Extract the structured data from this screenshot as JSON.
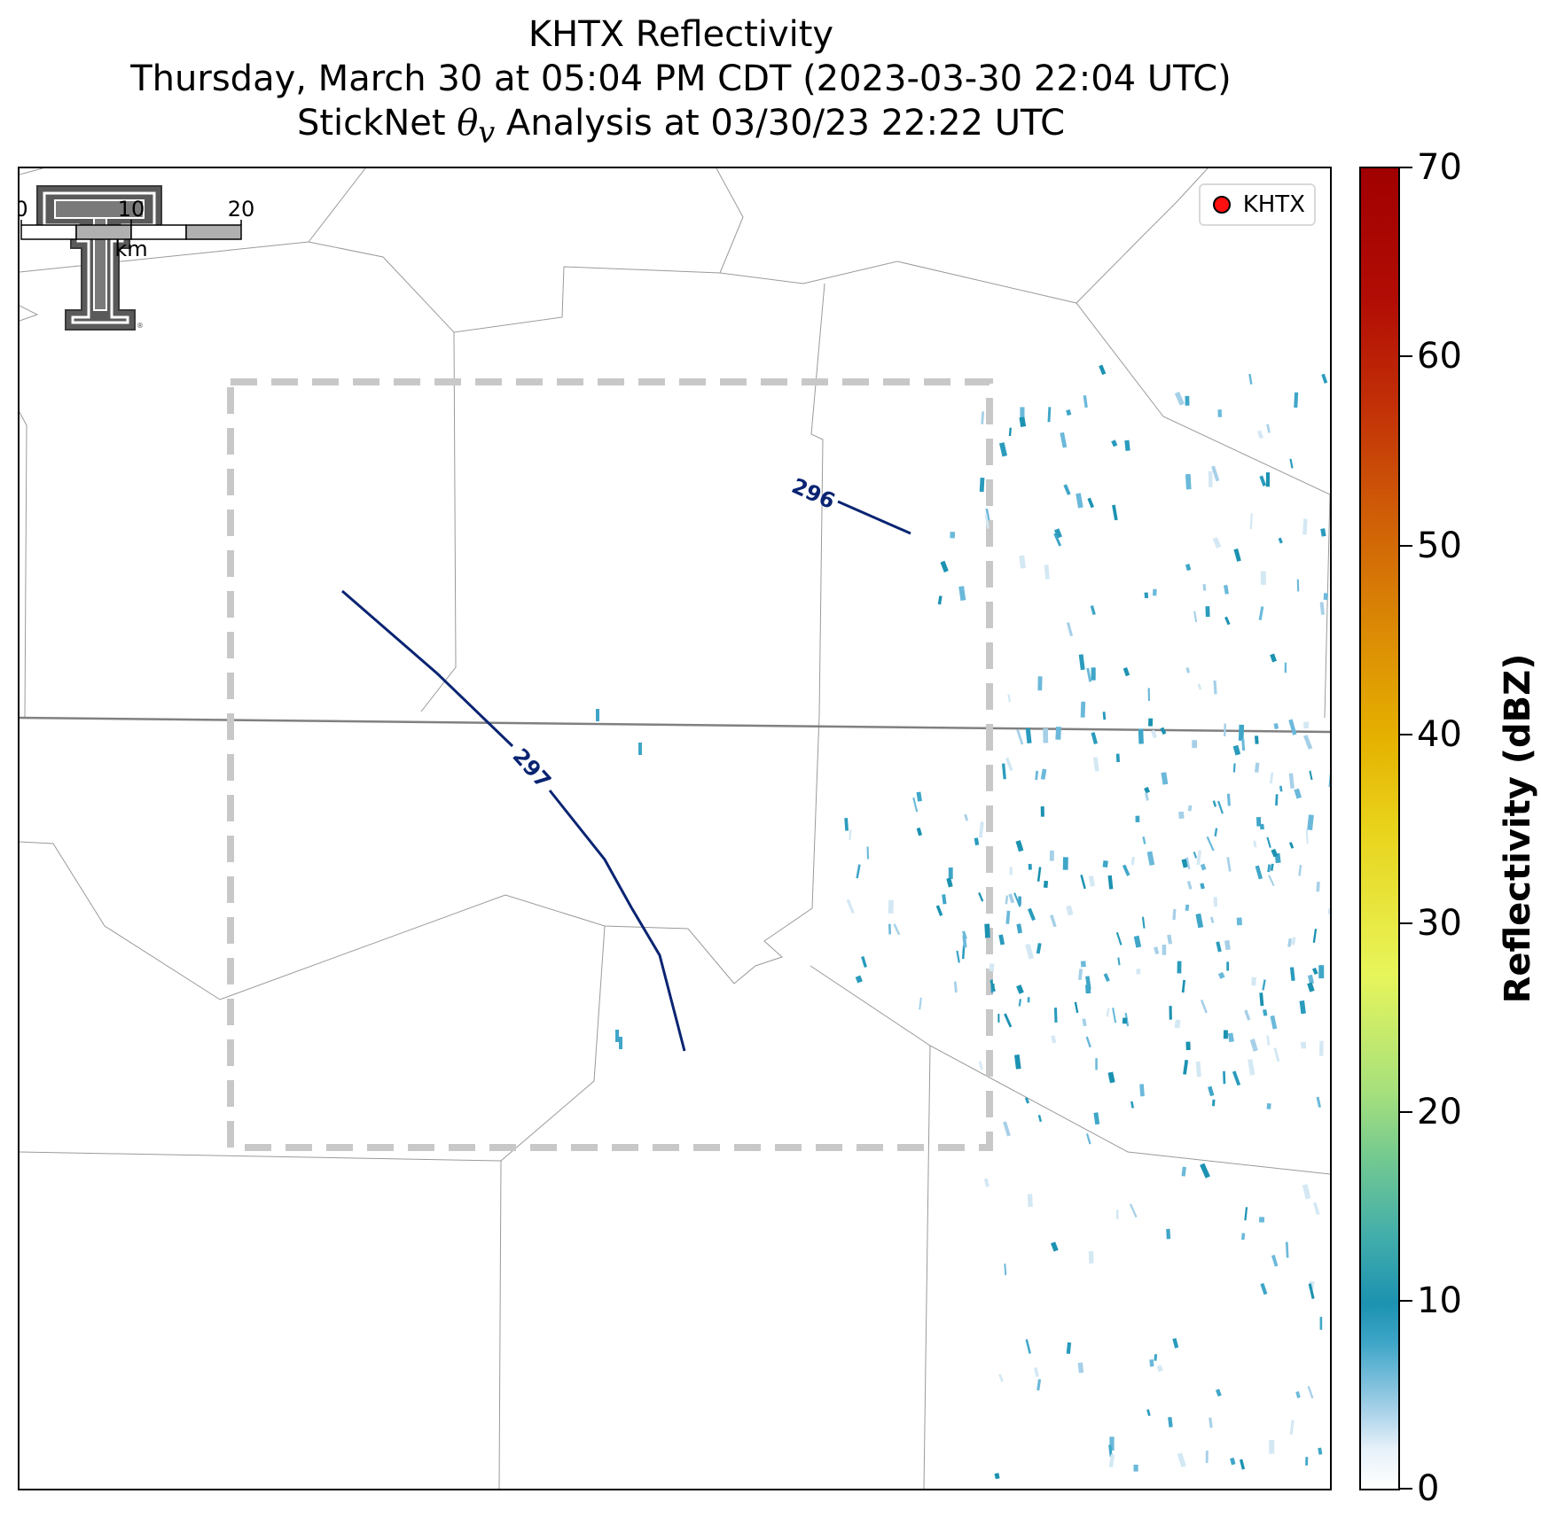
{
  "title": {
    "line1": "KHTX Reflectivity",
    "line2": "Thursday, March 30 at 05:04 PM CDT (2023-03-30 22:04 UTC)",
    "line3_prefix": "StickNet ",
    "line3_symbol": "θ",
    "line3_sub": "v",
    "line3_suffix": " Analysis at 03/30/23 22:22 UTC"
  },
  "legend": {
    "label": "KHTX",
    "marker_color": "#ff1010"
  },
  "contours": [
    {
      "label": "296",
      "color": "#0a2472"
    },
    {
      "label": "297",
      "color": "#0a2472"
    }
  ],
  "scale_bar": {
    "ticks": [
      "0",
      "10",
      "20"
    ],
    "unit": "km"
  },
  "colorbar": {
    "label": "Reflectivity (dBZ)",
    "ticks": [
      "70",
      "60",
      "50",
      "40",
      "30",
      "20",
      "10",
      "0"
    ],
    "range": [
      0,
      70
    ]
  },
  "colors": {
    "analysis_box": "#c8c8c8",
    "boundaries": "#999999",
    "state_line": "#808080"
  }
}
